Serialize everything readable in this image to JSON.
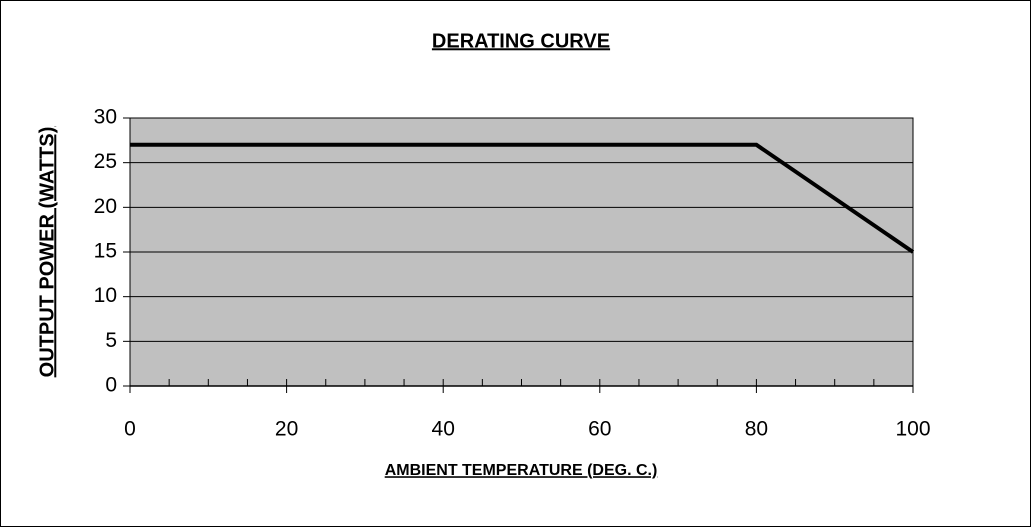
{
  "chart_data": {
    "type": "line",
    "title": "DERATING CURVE",
    "x_label": "AMBIENT TEMPERATURE (DEG. C.)",
    "y_label": "OUTPUT POWER (WATTS)",
    "x": [
      0,
      80,
      100
    ],
    "series": [
      {
        "color": "#000000",
        "values": [
          27,
          27,
          15
        ]
      }
    ],
    "xlim": [
      0,
      100
    ],
    "xticks": [
      0,
      20,
      40,
      60,
      80,
      100
    ],
    "xminorticks": [
      5,
      10,
      15,
      25,
      30,
      35,
      45,
      50,
      55,
      65,
      70,
      75,
      85,
      90,
      95
    ],
    "ylim": [
      0,
      30
    ],
    "yticks": [
      0,
      5,
      10,
      15,
      20,
      25,
      30
    ],
    "grid": true,
    "plot_background": "#c0c0c0"
  }
}
